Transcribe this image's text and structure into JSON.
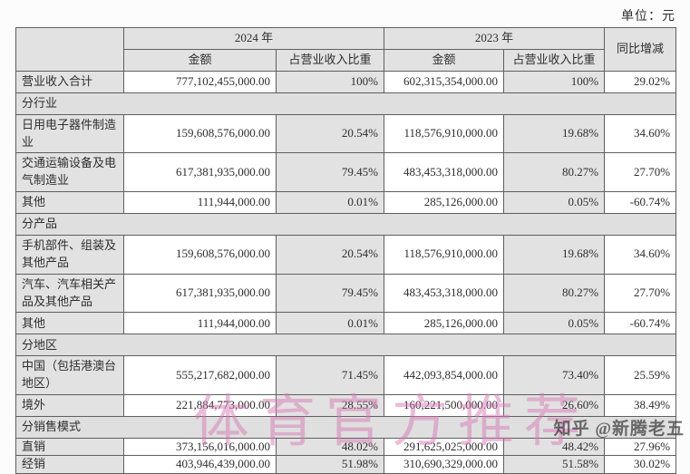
{
  "page": {
    "unit_label": "单位：元"
  },
  "table": {
    "header": {
      "year_2024": "2024 年",
      "year_2023": "2023 年",
      "yoy": "同比增减",
      "amount": "金额",
      "pct": "占营业收入比重"
    },
    "rows": [
      {
        "type": "data",
        "label": "营业收入合计",
        "a2024": "777,102,455,000.00",
        "p2024": "100%",
        "a2023": "602,315,354,000.00",
        "p2023": "100%",
        "yoy": "29.02%"
      },
      {
        "type": "section",
        "label": "分行业"
      },
      {
        "type": "data",
        "label": "日用电子器件制造业",
        "a2024": "159,608,576,000.00",
        "p2024": "20.54%",
        "a2023": "118,576,910,000.00",
        "p2023": "19.68%",
        "yoy": "34.60%"
      },
      {
        "type": "data",
        "label": "交通运输设备及电气制造业",
        "a2024": "617,381,935,000.00",
        "p2024": "79.45%",
        "a2023": "483,453,318,000.00",
        "p2023": "80.27%",
        "yoy": "27.70%"
      },
      {
        "type": "data",
        "label": "其他",
        "a2024": "111,944,000.00",
        "p2024": "0.01%",
        "a2023": "285,126,000.00",
        "p2023": "0.05%",
        "yoy": "-60.74%"
      },
      {
        "type": "section",
        "label": "分产品"
      },
      {
        "type": "data",
        "label": "手机部件、组装及其他产品",
        "a2024": "159,608,576,000.00",
        "p2024": "20.54%",
        "a2023": "118,576,910,000.00",
        "p2023": "19.68%",
        "yoy": "34.60%"
      },
      {
        "type": "data",
        "label": "汽车、汽车相关产品及其他产品",
        "a2024": "617,381,935,000.00",
        "p2024": "79.45%",
        "a2023": "483,453,318,000.00",
        "p2023": "80.27%",
        "yoy": "27.70%"
      },
      {
        "type": "data",
        "label": "其他",
        "a2024": "111,944,000.00",
        "p2024": "0.01%",
        "a2023": "285,126,000.00",
        "p2023": "0.05%",
        "yoy": "-60.74%"
      },
      {
        "type": "section",
        "label": "分地区"
      },
      {
        "type": "data",
        "label": "中国（包括港澳台地区）",
        "a2024": "555,217,682,000.00",
        "p2024": "71.45%",
        "a2023": "442,093,854,000.00",
        "p2023": "73.40%",
        "yoy": "25.59%"
      },
      {
        "type": "data",
        "label": "境外",
        "a2024": "221,884,773,000.00",
        "p2024": "28.55%",
        "a2023": "160,221,500,000.00",
        "p2023": "26.60%",
        "yoy": "38.49%"
      },
      {
        "type": "section",
        "label": "分销售模式"
      },
      {
        "type": "data",
        "compact": true,
        "label": "直销",
        "a2024": "373,156,016,000.00",
        "p2024": "48.02%",
        "a2023": "291,625,025,000.00",
        "p2023": "48.42%",
        "yoy": "27.96%"
      },
      {
        "type": "data",
        "compact": true,
        "label": "经销",
        "a2024": "403,946,439,000.00",
        "p2024": "51.98%",
        "a2023": "310,690,329,000.00",
        "p2023": "51.58%",
        "yoy": "30.02%"
      }
    ]
  },
  "watermarks": {
    "pink": "体育官方推荐",
    "zhihu": "知乎 @新腾老五"
  },
  "colors": {
    "cell_gray": "#e2e2e2",
    "section_gray": "#dfdfdf",
    "border": "#5f5f5f",
    "watermark_pink": "#d87ab5"
  }
}
